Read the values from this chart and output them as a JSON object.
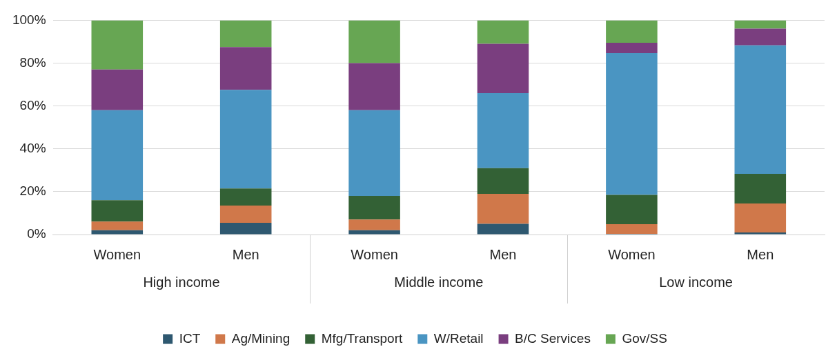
{
  "chart_data": {
    "type": "bar",
    "stacked": true,
    "categories": [
      "Women",
      "Men",
      "Women",
      "Men",
      "Women",
      "Men"
    ],
    "annotations": [
      "High income",
      "Middle income",
      "Low income"
    ],
    "series": [
      {
        "name": "ICT",
        "color": "#2e5870",
        "values": [
          2,
          5.5,
          2,
          5,
          0.3,
          1
        ]
      },
      {
        "name": "Ag/Mining",
        "color": "#d0784a",
        "values": [
          4,
          8,
          5,
          14,
          4.5,
          13.5
        ]
      },
      {
        "name": "Mfg/Transport",
        "color": "#336135",
        "values": [
          10,
          8,
          11,
          12,
          13.7,
          13.8
        ]
      },
      {
        "name": "W/Retail",
        "color": "#4a95c2",
        "values": [
          42,
          46,
          40,
          35,
          66.2,
          60
        ]
      },
      {
        "name": "B/C Services",
        "color": "#7a3e7f",
        "values": [
          19,
          20,
          22,
          23,
          4.8,
          7.8
        ]
      },
      {
        "name": "Gov/SS",
        "color": "#67a653",
        "values": [
          23,
          12.5,
          20,
          11,
          10.5,
          3.9
        ]
      }
    ],
    "ylim": [
      0,
      100
    ],
    "yticks": [
      {
        "value": 0,
        "label": "0%"
      },
      {
        "value": 20,
        "label": "20%"
      },
      {
        "value": 40,
        "label": "40%"
      },
      {
        "value": 60,
        "label": "60%"
      },
      {
        "value": 80,
        "label": "80%"
      },
      {
        "value": 100,
        "label": "100%"
      }
    ],
    "grid": "y",
    "legend": "bottom"
  }
}
